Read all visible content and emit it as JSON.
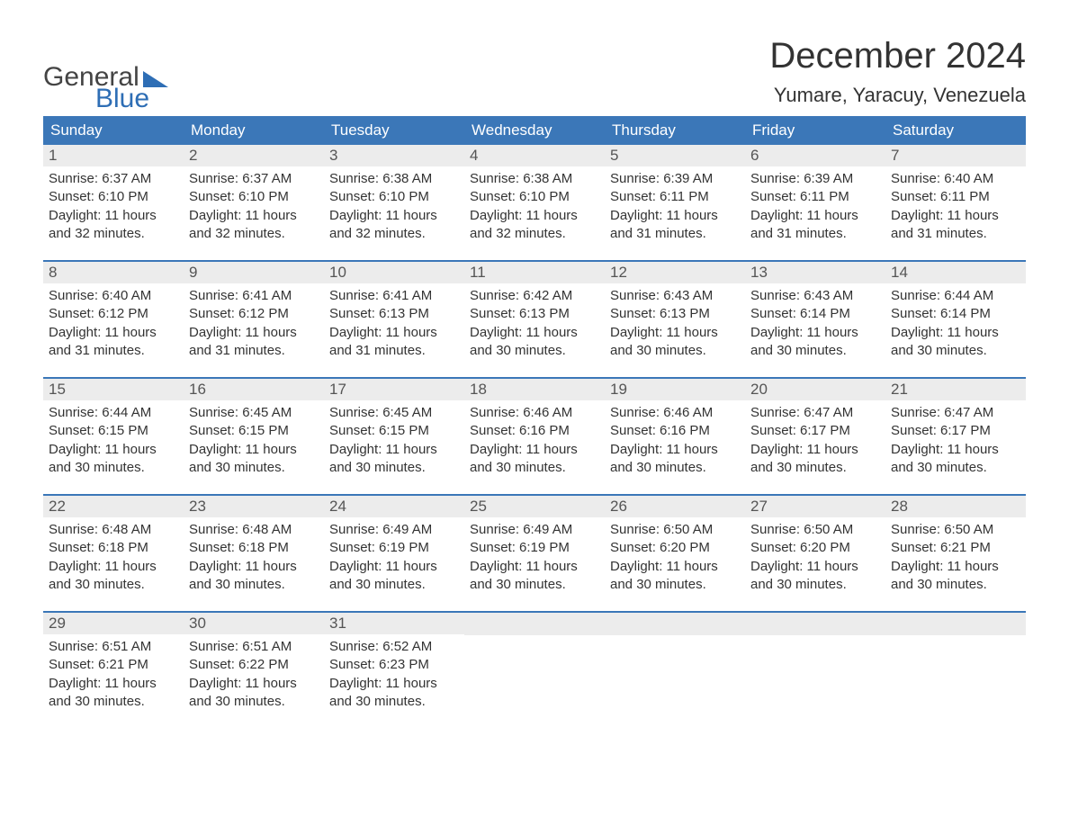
{
  "logo": {
    "word1": "General",
    "word2": "Blue",
    "accent_color": "#2e6eb5",
    "text_color": "#444444"
  },
  "title": "December 2024",
  "location": "Yumare, Yaracuy, Venezuela",
  "colors": {
    "header_bg": "#3b77b8",
    "header_text": "#ffffff",
    "daynum_bg": "#ececec",
    "daynum_text": "#555555",
    "body_text": "#333333",
    "background": "#ffffff"
  },
  "fonts": {
    "title_size_pt": 30,
    "location_size_pt": 16,
    "header_size_pt": 13,
    "body_size_pt": 11
  },
  "dayNames": [
    "Sunday",
    "Monday",
    "Tuesday",
    "Wednesday",
    "Thursday",
    "Friday",
    "Saturday"
  ],
  "labels": {
    "sunrise": "Sunrise",
    "sunset": "Sunset",
    "daylight": "Daylight",
    "hours": "hours",
    "and": "and",
    "minutes": "minutes"
  },
  "weeks": [
    [
      {
        "n": 1,
        "rise": "6:37 AM",
        "set": "6:10 PM",
        "dl_h": 11,
        "dl_m": 32
      },
      {
        "n": 2,
        "rise": "6:37 AM",
        "set": "6:10 PM",
        "dl_h": 11,
        "dl_m": 32
      },
      {
        "n": 3,
        "rise": "6:38 AM",
        "set": "6:10 PM",
        "dl_h": 11,
        "dl_m": 32
      },
      {
        "n": 4,
        "rise": "6:38 AM",
        "set": "6:10 PM",
        "dl_h": 11,
        "dl_m": 32
      },
      {
        "n": 5,
        "rise": "6:39 AM",
        "set": "6:11 PM",
        "dl_h": 11,
        "dl_m": 31
      },
      {
        "n": 6,
        "rise": "6:39 AM",
        "set": "6:11 PM",
        "dl_h": 11,
        "dl_m": 31
      },
      {
        "n": 7,
        "rise": "6:40 AM",
        "set": "6:11 PM",
        "dl_h": 11,
        "dl_m": 31
      }
    ],
    [
      {
        "n": 8,
        "rise": "6:40 AM",
        "set": "6:12 PM",
        "dl_h": 11,
        "dl_m": 31
      },
      {
        "n": 9,
        "rise": "6:41 AM",
        "set": "6:12 PM",
        "dl_h": 11,
        "dl_m": 31
      },
      {
        "n": 10,
        "rise": "6:41 AM",
        "set": "6:13 PM",
        "dl_h": 11,
        "dl_m": 31
      },
      {
        "n": 11,
        "rise": "6:42 AM",
        "set": "6:13 PM",
        "dl_h": 11,
        "dl_m": 30
      },
      {
        "n": 12,
        "rise": "6:43 AM",
        "set": "6:13 PM",
        "dl_h": 11,
        "dl_m": 30
      },
      {
        "n": 13,
        "rise": "6:43 AM",
        "set": "6:14 PM",
        "dl_h": 11,
        "dl_m": 30
      },
      {
        "n": 14,
        "rise": "6:44 AM",
        "set": "6:14 PM",
        "dl_h": 11,
        "dl_m": 30
      }
    ],
    [
      {
        "n": 15,
        "rise": "6:44 AM",
        "set": "6:15 PM",
        "dl_h": 11,
        "dl_m": 30
      },
      {
        "n": 16,
        "rise": "6:45 AM",
        "set": "6:15 PM",
        "dl_h": 11,
        "dl_m": 30
      },
      {
        "n": 17,
        "rise": "6:45 AM",
        "set": "6:15 PM",
        "dl_h": 11,
        "dl_m": 30
      },
      {
        "n": 18,
        "rise": "6:46 AM",
        "set": "6:16 PM",
        "dl_h": 11,
        "dl_m": 30
      },
      {
        "n": 19,
        "rise": "6:46 AM",
        "set": "6:16 PM",
        "dl_h": 11,
        "dl_m": 30
      },
      {
        "n": 20,
        "rise": "6:47 AM",
        "set": "6:17 PM",
        "dl_h": 11,
        "dl_m": 30
      },
      {
        "n": 21,
        "rise": "6:47 AM",
        "set": "6:17 PM",
        "dl_h": 11,
        "dl_m": 30
      }
    ],
    [
      {
        "n": 22,
        "rise": "6:48 AM",
        "set": "6:18 PM",
        "dl_h": 11,
        "dl_m": 30
      },
      {
        "n": 23,
        "rise": "6:48 AM",
        "set": "6:18 PM",
        "dl_h": 11,
        "dl_m": 30
      },
      {
        "n": 24,
        "rise": "6:49 AM",
        "set": "6:19 PM",
        "dl_h": 11,
        "dl_m": 30
      },
      {
        "n": 25,
        "rise": "6:49 AM",
        "set": "6:19 PM",
        "dl_h": 11,
        "dl_m": 30
      },
      {
        "n": 26,
        "rise": "6:50 AM",
        "set": "6:20 PM",
        "dl_h": 11,
        "dl_m": 30
      },
      {
        "n": 27,
        "rise": "6:50 AM",
        "set": "6:20 PM",
        "dl_h": 11,
        "dl_m": 30
      },
      {
        "n": 28,
        "rise": "6:50 AM",
        "set": "6:21 PM",
        "dl_h": 11,
        "dl_m": 30
      }
    ],
    [
      {
        "n": 29,
        "rise": "6:51 AM",
        "set": "6:21 PM",
        "dl_h": 11,
        "dl_m": 30
      },
      {
        "n": 30,
        "rise": "6:51 AM",
        "set": "6:22 PM",
        "dl_h": 11,
        "dl_m": 30
      },
      {
        "n": 31,
        "rise": "6:52 AM",
        "set": "6:23 PM",
        "dl_h": 11,
        "dl_m": 30
      },
      null,
      null,
      null,
      null
    ]
  ]
}
